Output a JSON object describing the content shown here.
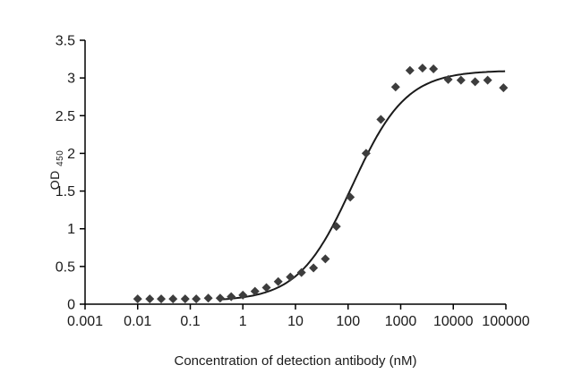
{
  "chart_data": {
    "type": "scatter",
    "title": "",
    "xlabel": "Concentration of detection antibody (nM)",
    "ylabel_main": "OD",
    "ylabel_sub": "450",
    "x_scale": "log",
    "x_log_range": [
      -3,
      5
    ],
    "ylim": [
      0,
      3.5
    ],
    "x_ticks": [
      "0.001",
      "0.01",
      "0.1",
      "1",
      "10",
      "100",
      "1000",
      "10000",
      "100000"
    ],
    "y_ticks": [
      "0",
      "0.5",
      "1",
      "1.5",
      "2",
      "2.5",
      "3",
      "3.5"
    ],
    "grid": false,
    "legend": "none",
    "marker": "diamond",
    "marker_color": "#3d3d3d",
    "curve_color": "#1a1a1a",
    "axis_color": "#000000",
    "points": [
      [
        0.01,
        0.07
      ],
      [
        0.017,
        0.07
      ],
      [
        0.028,
        0.07
      ],
      [
        0.047,
        0.07
      ],
      [
        0.08,
        0.07
      ],
      [
        0.13,
        0.07
      ],
      [
        0.22,
        0.08
      ],
      [
        0.37,
        0.08
      ],
      [
        0.6,
        0.1
      ],
      [
        1.0,
        0.12
      ],
      [
        1.7,
        0.17
      ],
      [
        2.8,
        0.22
      ],
      [
        4.7,
        0.3
      ],
      [
        8,
        0.36
      ],
      [
        13,
        0.42
      ],
      [
        22,
        0.48
      ],
      [
        37,
        0.6
      ],
      [
        60,
        1.03
      ],
      [
        110,
        1.42
      ],
      [
        220,
        2.0
      ],
      [
        420,
        2.45
      ],
      [
        800,
        2.88
      ],
      [
        1500,
        3.1
      ],
      [
        2600,
        3.13
      ],
      [
        4200,
        3.12
      ],
      [
        8000,
        2.98
      ],
      [
        14000,
        2.97
      ],
      [
        26000,
        2.95
      ],
      [
        45000,
        2.97
      ],
      [
        90000,
        2.87
      ]
    ],
    "fit": {
      "type": "4PL",
      "bottom": 0.04,
      "top": 3.1,
      "ec50": 120,
      "hill": 0.85,
      "x_start": 0.35,
      "x_end": 100000
    }
  }
}
